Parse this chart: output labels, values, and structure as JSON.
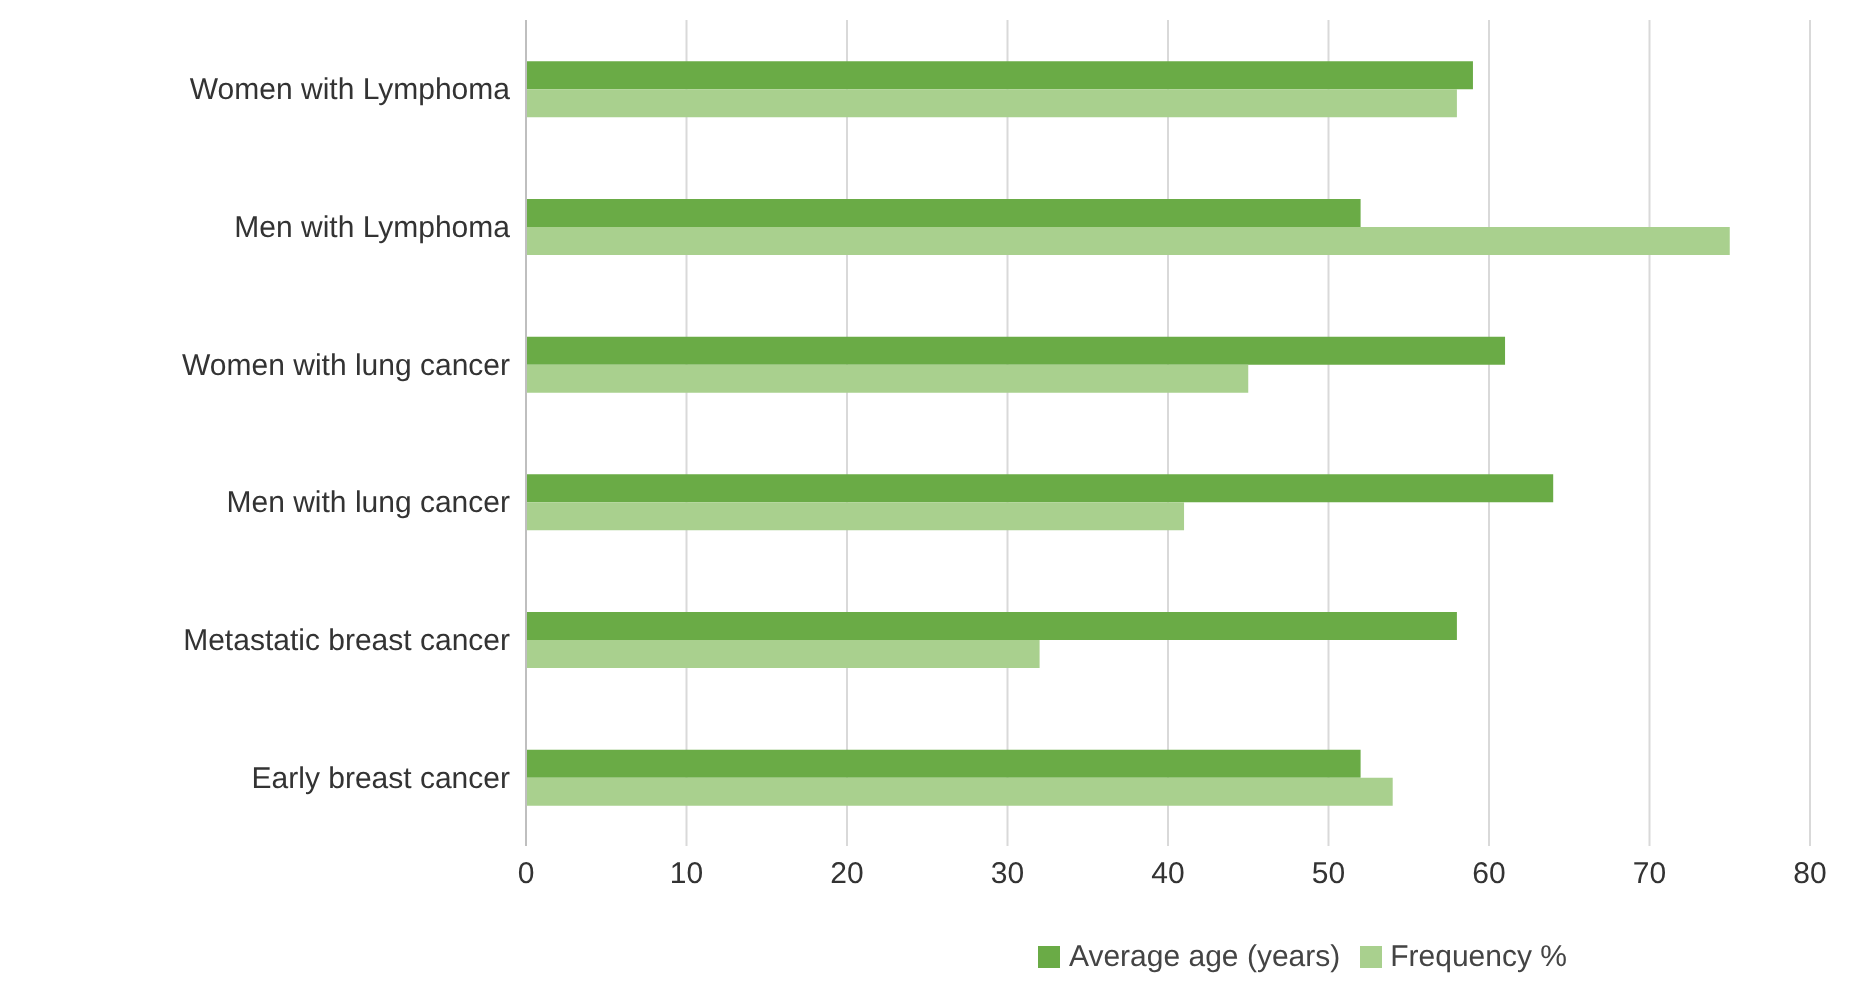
{
  "chart_data": {
    "type": "bar",
    "orientation": "horizontal",
    "categories": [
      "Women with Lymphoma",
      "Men with Lymphoma",
      "Women with lung cancer",
      "Men with lung cancer",
      "Metastatic breast cancer",
      "Early breast cancer"
    ],
    "series": [
      {
        "name": "Average age (years)",
        "color": "#6aab46",
        "values": [
          59,
          52,
          61,
          64,
          58,
          52
        ]
      },
      {
        "name": "Frequency %",
        "color": "#a9d08e",
        "values": [
          58,
          75,
          45,
          41,
          32,
          54
        ]
      }
    ],
    "xlim": [
      0,
      80
    ],
    "xticks": [
      0,
      10,
      20,
      30,
      40,
      50,
      60,
      70,
      80
    ],
    "grid": "x",
    "legend": "bottom"
  }
}
